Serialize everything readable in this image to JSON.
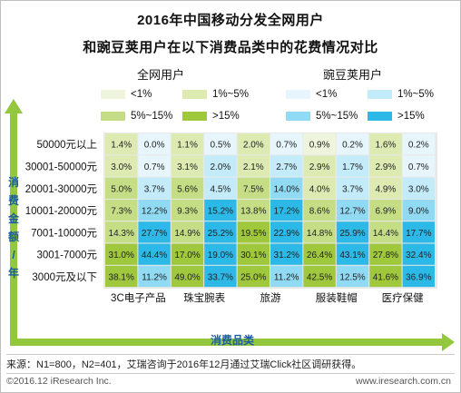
{
  "title_line1": "2016年中国移动分发全网用户",
  "title_line2": "和豌豆荚用户在以下消费品类中的花费情况对比",
  "group_labels": [
    "全网用户",
    "豌豆荚用户"
  ],
  "legend": {
    "all_users": [
      {
        "label": "<1%",
        "color": "#EEF5DC"
      },
      {
        "label": "1%~5%",
        "color": "#DDEBB3"
      },
      {
        "label": "5%~15%",
        "color": "#C5DE86"
      },
      {
        "label": ">15%",
        "color": "#A0C83C"
      }
    ],
    "wandoujia": [
      {
        "label": "<1%",
        "color": "#E6F6FC"
      },
      {
        "label": "1%~5%",
        "color": "#C3EBF9"
      },
      {
        "label": "5%~15%",
        "color": "#91DAF3"
      },
      {
        "label": ">15%",
        "color": "#2DB9E8"
      }
    ]
  },
  "chart_data": {
    "type": "heatmap",
    "ylabel": "消费金额/年",
    "xlabel": "消费品类",
    "rows": [
      "50000元以上",
      "30001-50000元",
      "20001-30000元",
      "10001-20000元",
      "7001-10000元",
      "3001-7000元",
      "3000元及以下"
    ],
    "categories": [
      "3C电子产品",
      "珠宝腕表",
      "旅游",
      "服装鞋帽",
      "医疗保健"
    ],
    "series": [
      {
        "name": "全网用户",
        "values": [
          [
            1.4,
            1.1,
            2.0,
            0.9,
            1.6
          ],
          [
            3.0,
            3.1,
            2.1,
            2.9,
            2.9
          ],
          [
            5.0,
            5.6,
            7.5,
            4.0,
            4.9
          ],
          [
            7.3,
            9.3,
            13.8,
            8.6,
            6.9
          ],
          [
            14.3,
            14.9,
            19.5,
            14.8,
            14.4
          ],
          [
            31.0,
            17.0,
            30.1,
            26.4,
            27.8
          ],
          [
            38.1,
            49.0,
            25.0,
            42.5,
            41.6
          ]
        ]
      },
      {
        "name": "豌豆荚用户",
        "values": [
          [
            0.0,
            0.5,
            0.7,
            0.2,
            0.2
          ],
          [
            0.7,
            2.0,
            2.7,
            1.7,
            0.7
          ],
          [
            3.7,
            4.5,
            14.0,
            3.7,
            3.0
          ],
          [
            12.2,
            15.2,
            17.2,
            12.7,
            9.0
          ],
          [
            27.7,
            25.2,
            22.9,
            25.9,
            17.7
          ],
          [
            44.4,
            19.0,
            31.2,
            43.1,
            32.4
          ],
          [
            11.2,
            33.7,
            11.2,
            12.5,
            36.9
          ]
        ]
      }
    ]
  },
  "footer": {
    "source": "来源：N1=800，N2=401，艾瑞咨询于2016年12月通过艾瑞Click社区调研获得。",
    "copyright": "©2016.12 iResearch Inc.",
    "website": "www.iresearch.com.cn"
  }
}
